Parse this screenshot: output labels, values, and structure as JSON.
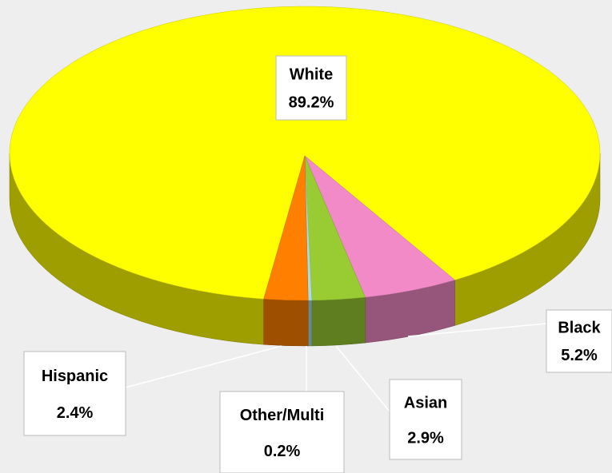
{
  "chart_data": {
    "type": "pie",
    "categories": [
      "White",
      "Black",
      "Asian",
      "Other/Multi",
      "Hispanic"
    ],
    "values": [
      89.2,
      5.2,
      2.9,
      0.2,
      2.4
    ],
    "value_labels": [
      "89.2%",
      "5.2%",
      "2.9%",
      "0.2%",
      "2.4%"
    ],
    "colors": [
      "#ffff00",
      "#f28ac8",
      "#99cc33",
      "#aadddd",
      "#ff8000"
    ]
  }
}
